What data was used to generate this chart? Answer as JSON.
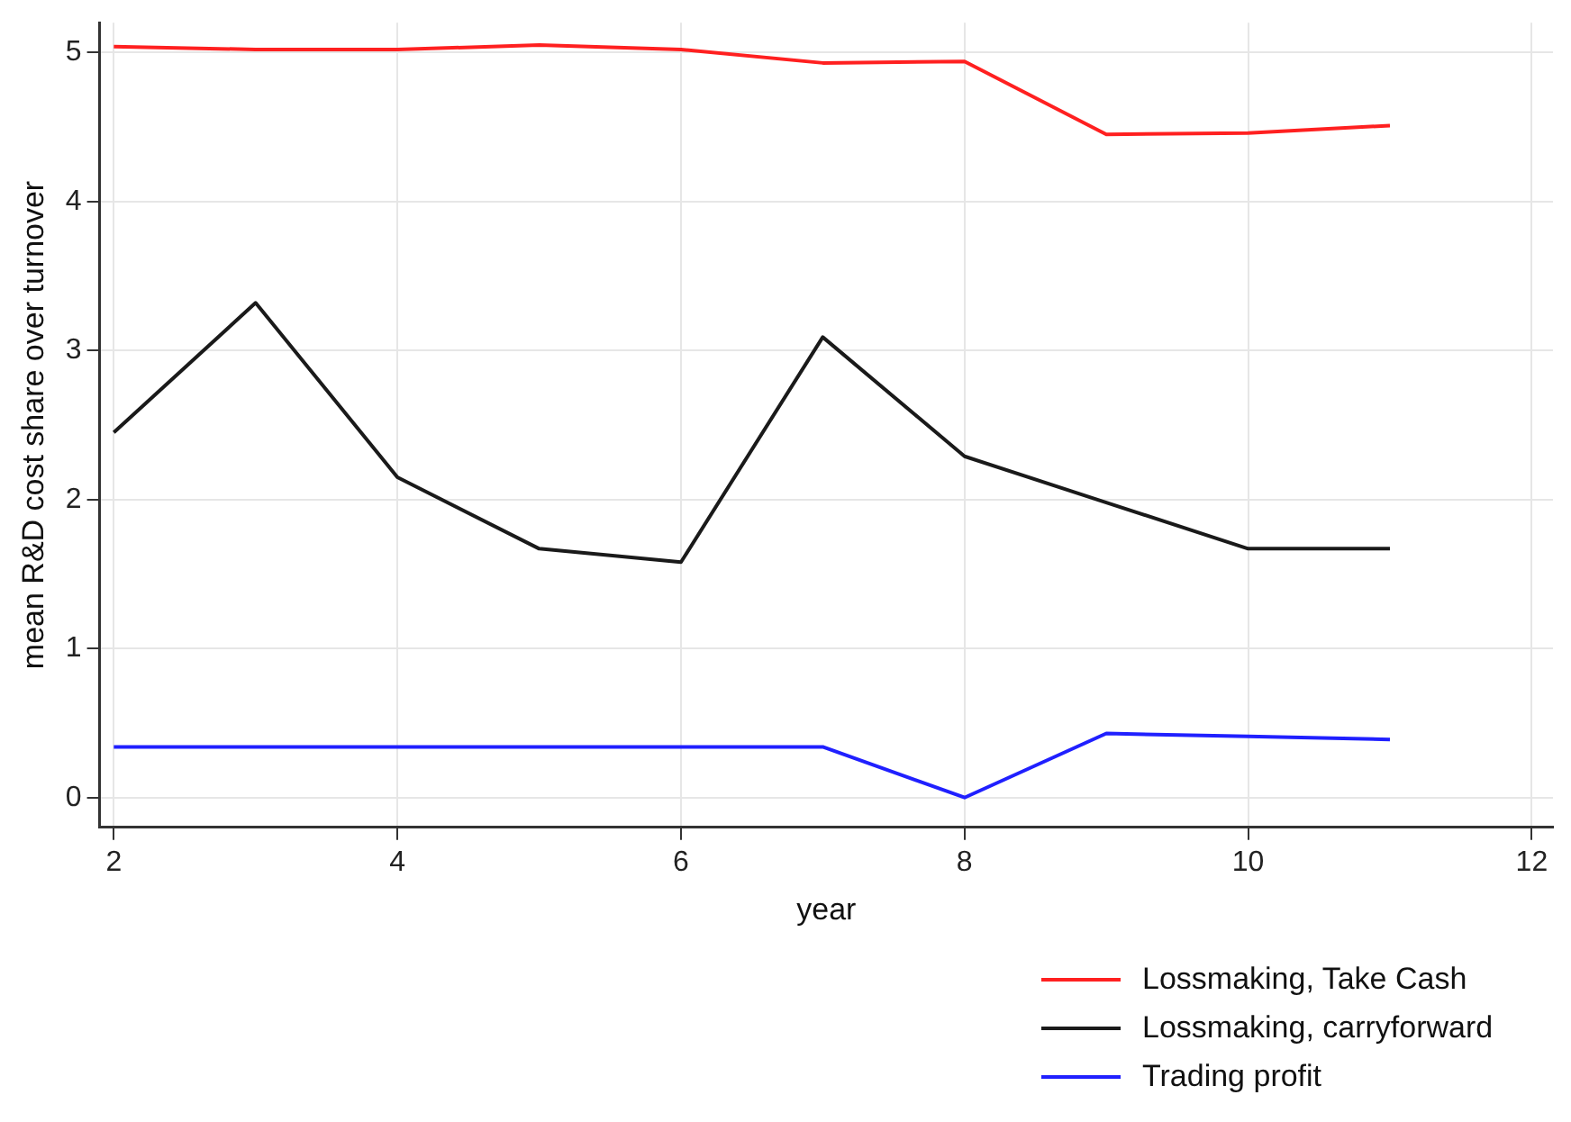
{
  "chart_data": {
    "type": "line",
    "xlabel": "year",
    "ylabel": "mean R&D cost share over turnover",
    "x": [
      2,
      3,
      4,
      5,
      6,
      7,
      8,
      9,
      10,
      11
    ],
    "xlim": [
      1.9,
      12.15
    ],
    "xticks": [
      2,
      4,
      6,
      8,
      10,
      12
    ],
    "ylim": [
      -0.2,
      5.2
    ],
    "yticks": [
      0,
      1,
      2,
      3,
      4,
      5
    ],
    "grid": true,
    "legend": "bottom right",
    "marker": "none",
    "line_style": "solid",
    "series": [
      {
        "name": "Lossmaking, Take Cash",
        "color": "#ff2020",
        "values": [
          5.04,
          5.02,
          5.02,
          5.05,
          5.02,
          4.93,
          4.94,
          4.45,
          4.46,
          4.51
        ]
      },
      {
        "name": "Lossmaking, carryforward",
        "color": "#1a1a1a",
        "values": [
          2.45,
          3.32,
          2.15,
          1.67,
          1.58,
          3.09,
          2.29,
          1.98,
          1.67,
          1.67
        ]
      },
      {
        "name": "Trading profit",
        "color": "#2020ff",
        "values": [
          0.34,
          0.34,
          0.34,
          0.34,
          0.34,
          0.34,
          0,
          0.43,
          0.41,
          0.39
        ]
      }
    ]
  }
}
